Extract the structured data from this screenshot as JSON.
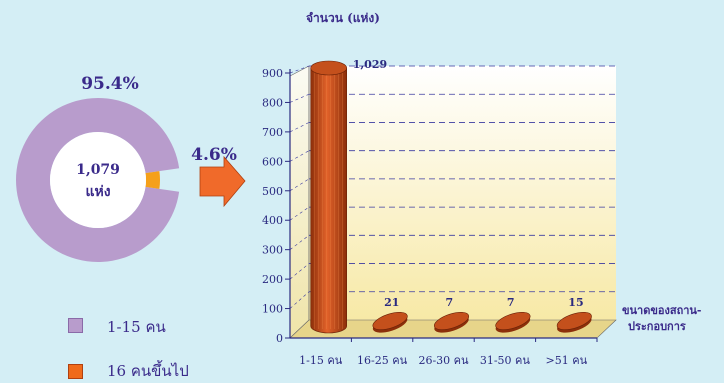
{
  "chart_data": [
    {
      "type": "pie",
      "center_label": "1,079",
      "center_sublabel": "แห่ง",
      "slices": [
        {
          "name": "1-15 คน",
          "value": 95.4,
          "label": "95.4%",
          "color": "#b89ccc"
        },
        {
          "name": "16 คนขึ้นไป",
          "value": 4.6,
          "label": "4.6%",
          "color": "#f5a01a"
        }
      ],
      "legend": [
        {
          "label": "1-15 คน",
          "color": "#b89ccc"
        },
        {
          "label": "16 คนขึ้นไป",
          "color": "#f06a1a"
        }
      ]
    },
    {
      "type": "bar",
      "title": "จำนวน (แห่ง)",
      "xlabel": "ขนาดของสถาน-ประกอบการ",
      "categories": [
        "1-15 คน",
        "16-25 คน",
        "26-30 คน",
        "31-50 คน",
        ">51 คน"
      ],
      "values": [
        1029,
        21,
        7,
        7,
        15
      ],
      "value_labels": [
        "1,029",
        "21",
        "7",
        "7",
        "15"
      ],
      "ylim": [
        0,
        900
      ],
      "yticks": [
        "0",
        "100",
        "200",
        "300",
        "400",
        "500",
        "600",
        "700",
        "800",
        "900"
      ],
      "bar_color": "#c4501c",
      "grid": true
    }
  ],
  "arrow": {
    "color": "#f06a2a"
  }
}
